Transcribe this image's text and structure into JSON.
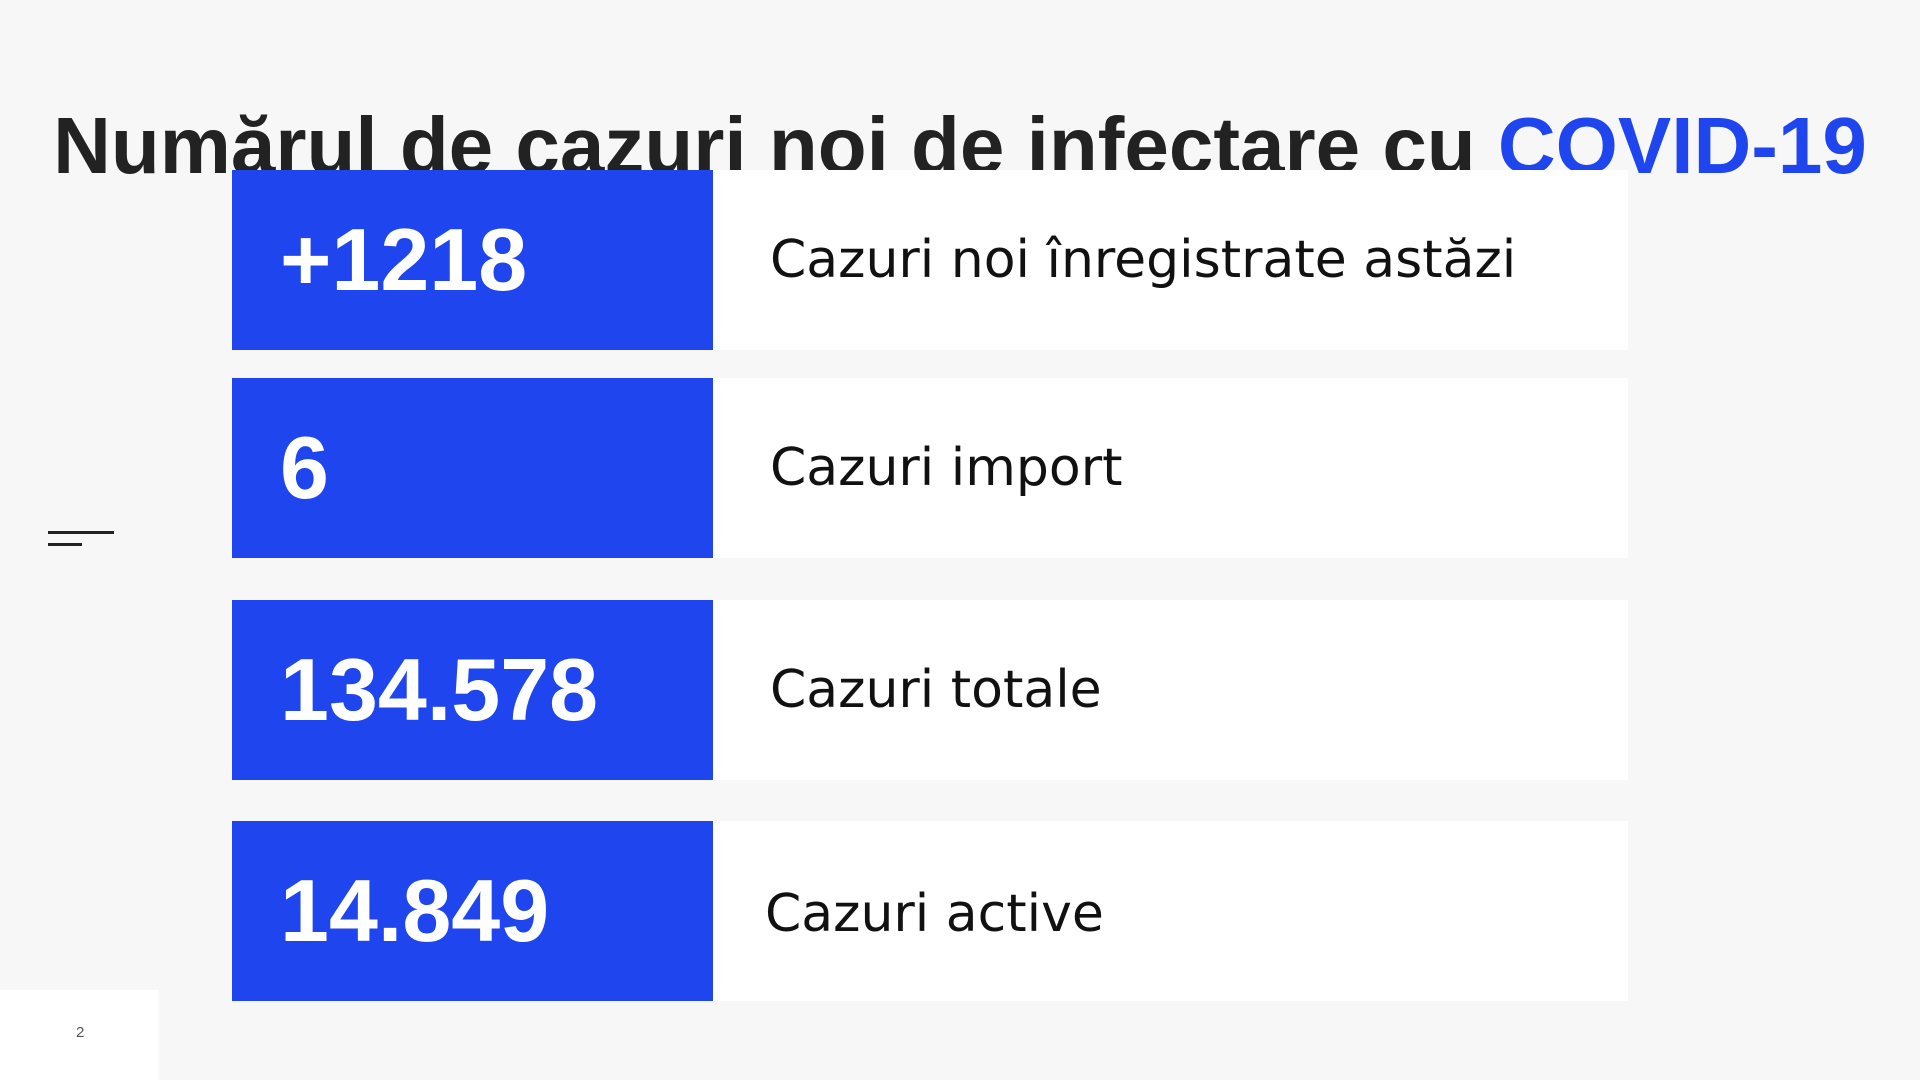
{
  "title": {
    "text": "Numărul de cazuri noi de infectare cu",
    "highlight": "COVID-19"
  },
  "stats": [
    {
      "value": "+1218",
      "label": "Cazuri noi înregistrate astăzi"
    },
    {
      "value": "6",
      "label": "Cazuri import"
    },
    {
      "value": "134.578",
      "label": "Cazuri totale"
    },
    {
      "value": "14.849",
      "label": "Cazuri active"
    }
  ],
  "page_number": "2",
  "colors": {
    "accent": "#1f45ee",
    "background": "#f7f7f7",
    "card": "#ffffff",
    "title_text": "#222222"
  }
}
